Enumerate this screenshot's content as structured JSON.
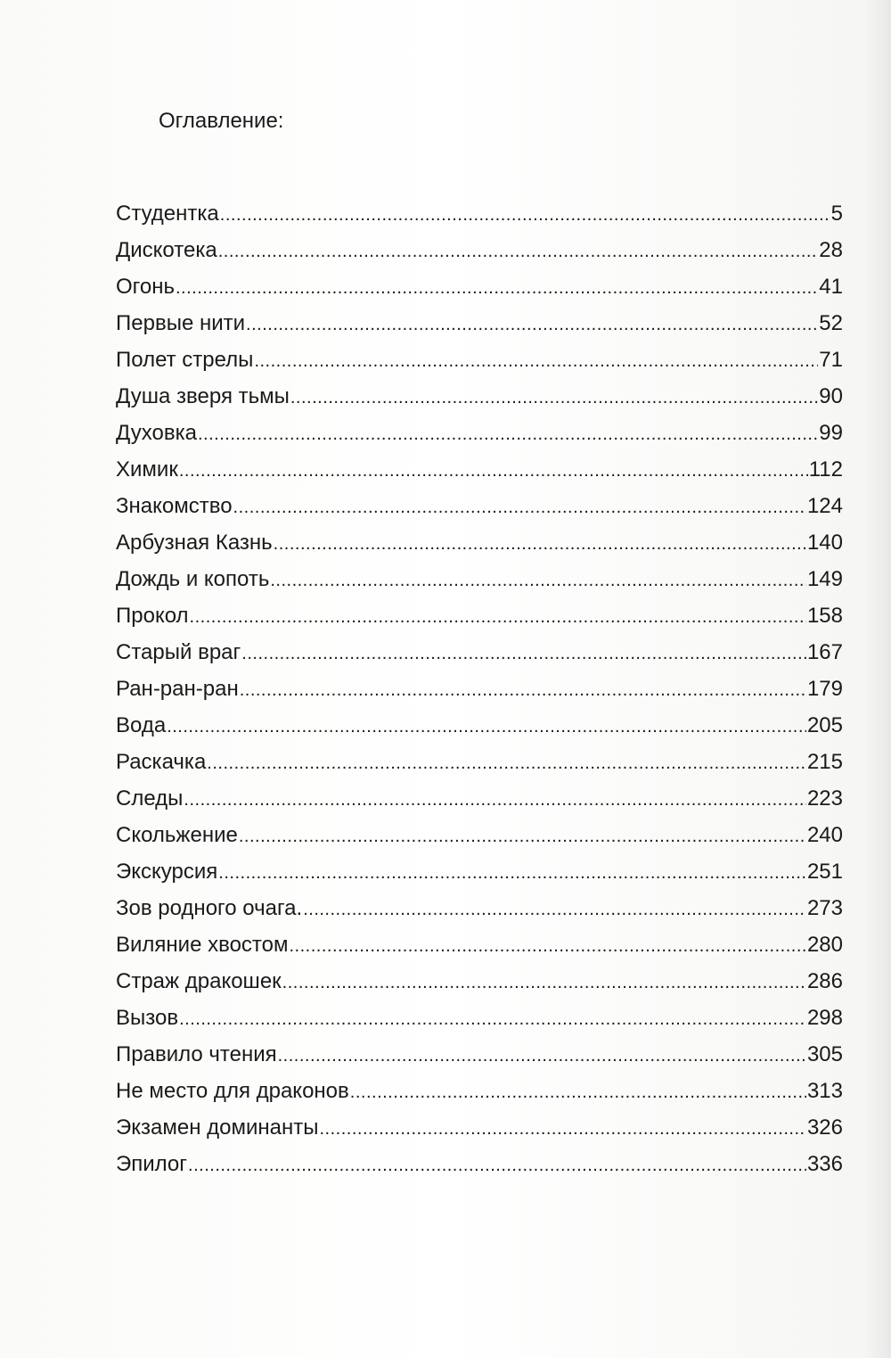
{
  "title": "Оглавление:",
  "entries": [
    {
      "label": "Студентка",
      "page": "5"
    },
    {
      "label": "Дискотека",
      "page": "28"
    },
    {
      "label": "Огонь",
      "page": "41"
    },
    {
      "label": "Первые нити",
      "page": "52"
    },
    {
      "label": "Полет стрелы",
      "page": "71"
    },
    {
      "label": "Душа зверя тьмы",
      "page": "90"
    },
    {
      "label": "Духовка",
      "page": "99"
    },
    {
      "label": "Химик",
      "page": "112"
    },
    {
      "label": "Знакомство",
      "page": "124"
    },
    {
      "label": "Арбузная Казнь",
      "page": "140"
    },
    {
      "label": "Дождь и копоть",
      "page": "149"
    },
    {
      "label": "Прокол",
      "page": "158"
    },
    {
      "label": "Старый враг",
      "page": "167"
    },
    {
      "label": "Ран-ран-ран",
      "page": "179"
    },
    {
      "label": "Вода",
      "page": "205"
    },
    {
      "label": "Раскачка",
      "page": "215"
    },
    {
      "label": "Следы",
      "page": "223"
    },
    {
      "label": "Скольжение",
      "page": "240"
    },
    {
      "label": "Экскурсия",
      "page": "251"
    },
    {
      "label": "Зов родного очага.",
      "page": "273"
    },
    {
      "label": "Виляние хвостом",
      "page": "280"
    },
    {
      "label": "Страж дракошек",
      "page": "286"
    },
    {
      "label": "Вызов",
      "page": "298"
    },
    {
      "label": "Правило чтения",
      "page": "305"
    },
    {
      "label": "Не место для драконов",
      "page": "313"
    },
    {
      "label": "Экзамен доминанты",
      "page": "326"
    },
    {
      "label": "Эпилог",
      "page": "336"
    }
  ]
}
